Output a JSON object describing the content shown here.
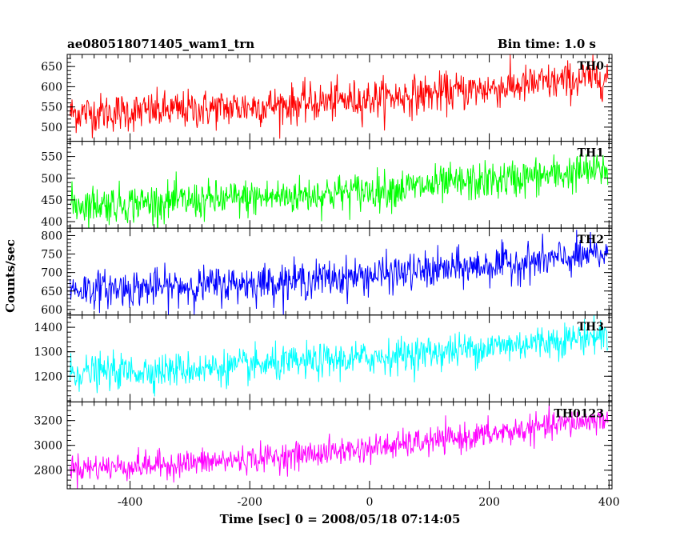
{
  "header": {
    "title": "ae080518071405_wam1_trn",
    "bin_time": "Bin time: 1.0 s"
  },
  "axes": {
    "xlabel": "Time [sec] 0 = 2008/05/18 07:14:05",
    "ylabel": "Counts/sec"
  },
  "chart_data": {
    "type": "line",
    "x_range": [
      -505,
      405
    ],
    "x_ticks": [
      -400,
      -200,
      0,
      200,
      400
    ],
    "bin_time_s": 1.0,
    "panels": [
      {
        "name": "TH0",
        "color": "#ff0000",
        "ylim": [
          465,
          680
        ],
        "y_ticks": [
          500,
          550,
          600,
          650
        ],
        "trend_start": 535,
        "trend_end": 625,
        "noise_sd": 24
      },
      {
        "name": "TH1",
        "color": "#00ff00",
        "ylim": [
          385,
          585
        ],
        "y_ticks": [
          400,
          450,
          500,
          550
        ],
        "trend_start": 440,
        "trend_end": 520,
        "noise_sd": 22
      },
      {
        "name": "TH2",
        "color": "#0000ff",
        "ylim": [
          585,
          820
        ],
        "y_ticks": [
          600,
          650,
          700,
          750,
          800
        ],
        "trend_start": 655,
        "trend_end": 750,
        "noise_sd": 25
      },
      {
        "name": "TH3",
        "color": "#00ffff",
        "ylim": [
          1095,
          1450
        ],
        "y_ticks": [
          1200,
          1300,
          1400
        ],
        "trend_start": 1215,
        "trend_end": 1370,
        "noise_sd": 35
      },
      {
        "name": "TH0123",
        "color": "#ff00ff",
        "ylim": [
          2650,
          3350
        ],
        "y_ticks": [
          2800,
          3000,
          3200
        ],
        "trend_start": 2820,
        "trend_end": 3220,
        "noise_sd": 55
      }
    ]
  }
}
